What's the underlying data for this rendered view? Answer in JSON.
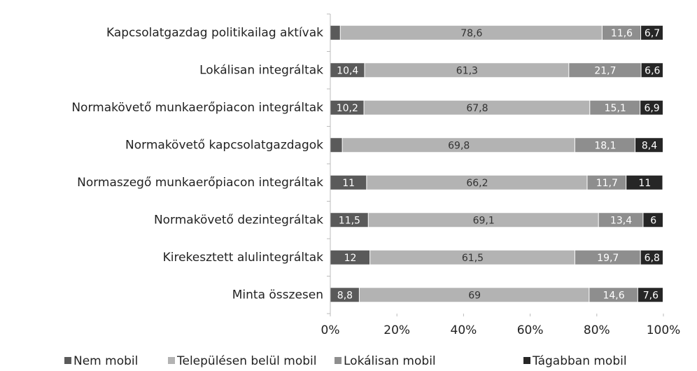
{
  "chart_data": {
    "type": "stacked-bar-horizontal",
    "categories": [
      "Kapcsolatgazdag politikailag aktívak",
      "Lokálisan integráltak",
      "Normakövető munkaerőpiacon integráltak",
      "Normakövető kapcsolatgazdagok",
      "Normaszegő munkaerőpiacon integráltak",
      "Normakövető dezintegráltak",
      "Kirekesztett alulintegráltak",
      "Minta összesen"
    ],
    "series": [
      {
        "name": "Nem mobil",
        "color": "#5a5a5a",
        "values": [
          3.1,
          10.4,
          10.2,
          3.7,
          11,
          11.5,
          12,
          8.8
        ],
        "value_labels": [
          null,
          "10,4",
          "10,2",
          null,
          "11",
          "11,5",
          "12",
          "8,8"
        ]
      },
      {
        "name": "Településen belül mobil",
        "color": "#b3b3b3",
        "values": [
          78.6,
          61.3,
          67.8,
          69.8,
          66.2,
          69.1,
          61.5,
          69
        ],
        "value_labels": [
          "78,6",
          "61,3",
          "67,8",
          "69,8",
          "66,2",
          "69,1",
          "61,5",
          "69"
        ]
      },
      {
        "name": "Lokálisan mobil",
        "color": "#8e8e8e",
        "values": [
          11.6,
          21.7,
          15.1,
          18.1,
          11.7,
          13.4,
          19.7,
          14.6
        ],
        "value_labels": [
          "11,6",
          "21,7",
          "15,1",
          "18,1",
          "11,7",
          "13,4",
          "19,7",
          "14,6"
        ]
      },
      {
        "name": "Tágabban mobil",
        "color": "#262626",
        "values": [
          6.7,
          6.6,
          6.9,
          8.4,
          11,
          6,
          6.8,
          7.6
        ],
        "value_labels": [
          "6,7",
          "6,6",
          "6,9",
          "8,4",
          "11",
          "6",
          "6,8",
          "7,6"
        ]
      }
    ],
    "xlim": [
      0,
      100
    ],
    "xticks": [
      {
        "value": 0,
        "label": "0%"
      },
      {
        "value": 20,
        "label": "20%"
      },
      {
        "value": 40,
        "label": "40%"
      },
      {
        "value": 60,
        "label": "60%"
      },
      {
        "value": 80,
        "label": "80%"
      },
      {
        "value": 100,
        "label": "100%"
      }
    ],
    "legend": "bottom"
  }
}
